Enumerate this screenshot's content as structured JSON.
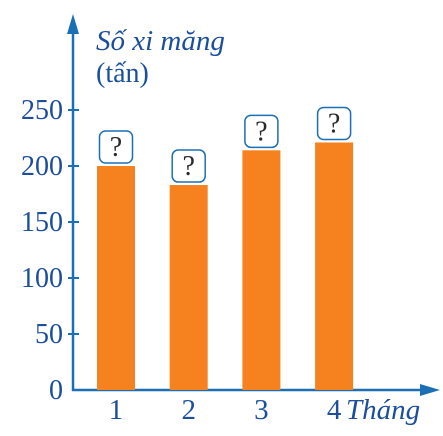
{
  "chart_data": {
    "type": "bar",
    "categories": [
      "1",
      "2",
      "3",
      "4"
    ],
    "values": [
      200,
      183,
      214,
      221
    ],
    "value_labels": [
      "?",
      "?",
      "?",
      "?"
    ],
    "ylabel_line1": "Số xi măng",
    "ylabel_line2": "(tấn)",
    "xlabel": "Tháng",
    "yticks": [
      "0",
      "50",
      "100",
      "150",
      "200",
      "250"
    ],
    "ytick_values": [
      0,
      50,
      100,
      150,
      200,
      250
    ],
    "ylim": [
      0,
      250
    ],
    "grid": false,
    "colors": {
      "bar": "#f5821f",
      "axis": "#1b6fb5",
      "text": "#1b4f9c",
      "label_box_border": "#1b6fb5"
    }
  }
}
